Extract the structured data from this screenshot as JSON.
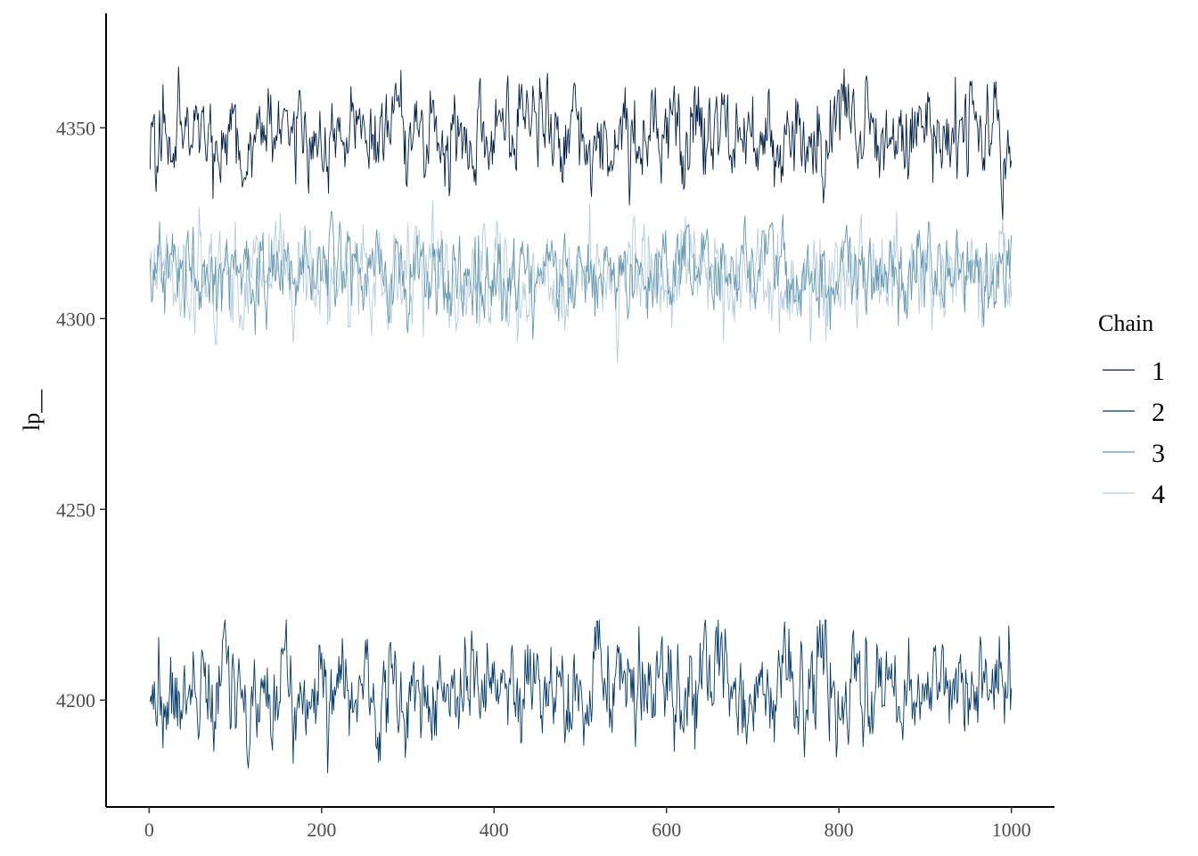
{
  "chart_data": {
    "type": "line",
    "title": "",
    "xlabel": "",
    "ylabel": "lp__",
    "xlim": [
      -50,
      1050
    ],
    "ylim": [
      4172,
      4380
    ],
    "x_ticks": [
      0,
      200,
      400,
      600,
      800,
      1000
    ],
    "x_tick_labels": [
      "0",
      "200",
      "400",
      "600",
      "800",
      "1000"
    ],
    "y_ticks": [
      4200,
      4250,
      4300,
      4350
    ],
    "y_tick_labels": [
      "4200",
      "4250",
      "4300",
      "4350"
    ],
    "grid": false,
    "legend": {
      "title": "Chain",
      "position": "right",
      "entries": [
        "1",
        "2",
        "3",
        "4"
      ]
    },
    "n_iterations": 1000,
    "series": [
      {
        "name": "1",
        "color": "#011f4b",
        "center": 4348,
        "range": [
          4326,
          4369
        ]
      },
      {
        "name": "2",
        "color": "#03396c",
        "center": 4202,
        "range": [
          4175,
          4221
        ]
      },
      {
        "name": "3",
        "color": "#6497b1",
        "center": 4312,
        "range": [
          4292,
          4328
        ]
      },
      {
        "name": "4",
        "color": "#b3cde0",
        "center": 4311,
        "range": [
          4288,
          4332
        ]
      }
    ]
  }
}
